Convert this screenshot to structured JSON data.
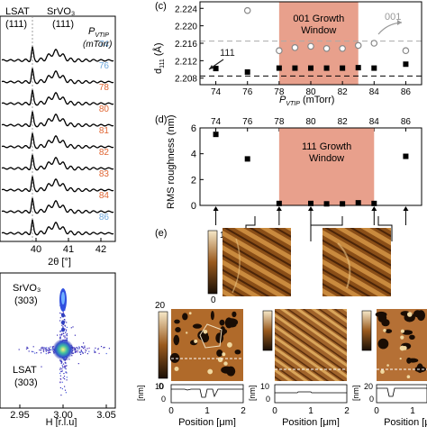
{
  "xrd": {
    "labels": {
      "lsat": "LSAT",
      "lsat_hkl": "(111)",
      "srvo3": "SrVO₃",
      "srvo3_hkl": "(111)",
      "p_label": "P",
      "p_sub": "VTIP",
      "p_unit": "(mTorr)"
    },
    "x_ticks": [
      "40",
      "41",
      "42"
    ],
    "x_label": "2θ [°]",
    "curves": [
      {
        "p": "86",
        "color": "#6fa8dc"
      },
      {
        "p": "84",
        "color": "#e06633"
      },
      {
        "p": "83",
        "color": "#e06633"
      },
      {
        "p": "82",
        "color": "#e06633"
      },
      {
        "p": "81",
        "color": "#e06633"
      },
      {
        "p": "80",
        "color": "#e06633"
      },
      {
        "p": "78",
        "color": "#e06633"
      },
      {
        "p": "76",
        "color": "#6fa8dc"
      },
      {
        "p": "74",
        "color": "#6fa8dc"
      }
    ]
  },
  "rsm": {
    "srvo3": "SrVO₃",
    "srvo3_hkl": "(303)",
    "lsat": "LSAT",
    "lsat_hkl": "(303)",
    "x_ticks": [
      "2.95",
      "3.00",
      "3.05"
    ],
    "x_label": "H [r.l.u]"
  },
  "panel_c": {
    "tag": "(c)",
    "y_label": "d",
    "y_sub": "111",
    "y_unit": " (Å)",
    "y_ticks": [
      "2.224",
      "2.220",
      "2.216",
      "2.212",
      "2.208"
    ],
    "x_ticks": [
      "74",
      "76",
      "78",
      "80",
      "82",
      "84",
      "86"
    ],
    "x_label": "P",
    "x_sub": "VTIP",
    "x_unit": " (mTorr)",
    "window_label_1": "001 Growth",
    "window_label_2": "Window",
    "label_111": "111",
    "label_001": "001",
    "chart_data": {
      "type": "scatter",
      "xlim": [
        73,
        87
      ],
      "ylim": [
        2.2065,
        2.2255
      ],
      "window": [
        78,
        83
      ],
      "ref_lines": [
        2.2165,
        2.2085
      ],
      "series": [
        {
          "name": "111",
          "x": [
            74,
            76,
            78,
            79,
            80,
            81,
            82,
            83,
            84,
            86
          ],
          "values": [
            2.2102,
            2.2094,
            2.2103,
            2.2103,
            2.2103,
            2.2103,
            2.2103,
            2.2104,
            2.2103,
            2.2112
          ]
        },
        {
          "name": "001",
          "x": [
            76,
            78,
            79,
            80,
            81,
            82,
            83,
            84,
            86
          ],
          "values": [
            2.2235,
            2.2143,
            2.215,
            2.2153,
            2.2148,
            2.2148,
            2.2155,
            2.216,
            2.2143
          ]
        }
      ]
    }
  },
  "panel_d": {
    "tag": "(d)",
    "y_label": "RMS roughness (nm)",
    "y_ticks": [
      "0",
      "2",
      "4",
      "6"
    ],
    "x_ticks": [
      "74",
      "76",
      "78",
      "80",
      "82",
      "84",
      "86"
    ],
    "window_label_1": "111 Growth",
    "window_label_2": "Window",
    "chart_data": {
      "type": "scatter",
      "xlim": [
        73,
        87
      ],
      "ylim": [
        0,
        6
      ],
      "window": [
        78,
        84
      ],
      "series": [
        {
          "name": "",
          "x": [
            74,
            76,
            78,
            80,
            81,
            82,
            83,
            84,
            86
          ],
          "values": [
            5.5,
            3.6,
            0.15,
            0.15,
            0.12,
            0.12,
            0.2,
            0.15,
            3.8
          ]
        }
      ]
    }
  },
  "panel_e": {
    "tag": "(e)",
    "scale_top": "1",
    "scale_bottom": "0",
    "scale_bottom_max": "20",
    "scale_bottom_min": "0",
    "profile_unit": "[nm]",
    "profile_ticks_a": [
      "10",
      "0"
    ],
    "profile_ticks_b": [
      "10",
      "0"
    ],
    "profile_ticks_c": [
      "20",
      "0"
    ],
    "pos_ticks": [
      "0",
      "1",
      "2"
    ],
    "pos_label": "Position [μm]"
  }
}
